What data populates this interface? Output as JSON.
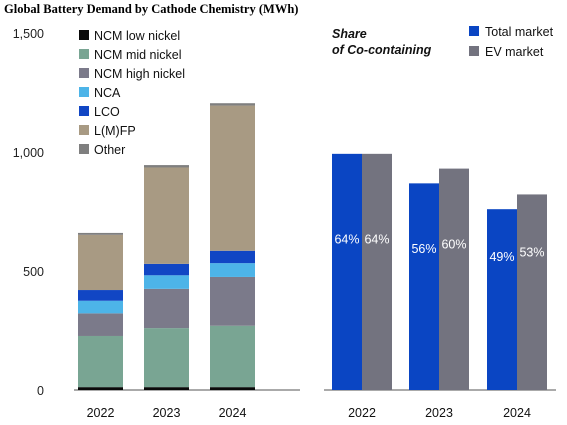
{
  "title": "Global Battery Demand by Cathode Chemistry (MWh)",
  "chart_data": [
    {
      "type": "bar",
      "stacked": true,
      "categories": [
        "2022",
        "2023",
        "2024"
      ],
      "yticks": [
        "1,500",
        "1,000",
        "500",
        "0"
      ],
      "ylim": [
        0,
        1500
      ],
      "legend_position": "top-left",
      "series": [
        {
          "name": "NCM low nickel",
          "color": "#0a0a0a",
          "values": [
            12,
            12,
            12
          ]
        },
        {
          "name": "NCM mid nickel",
          "color": "#79a593",
          "values": [
            215,
            248,
            258
          ]
        },
        {
          "name": "NCM high nickel",
          "color": "#7b7a8a",
          "values": [
            95,
            165,
            205
          ]
        },
        {
          "name": "NCA",
          "color": "#4db4e8",
          "values": [
            53,
            57,
            58
          ]
        },
        {
          "name": "LCO",
          "color": "#1146c4",
          "values": [
            45,
            48,
            52
          ]
        },
        {
          "name": "L(M)FP",
          "color": "#a89a83",
          "values": [
            232,
            405,
            610
          ]
        },
        {
          "name": "Other",
          "color": "#7f7f7f",
          "values": [
            8,
            10,
            10
          ]
        }
      ]
    },
    {
      "type": "bar",
      "subtitle": "Share\nof Co-containing",
      "categories": [
        "2022",
        "2023",
        "2024"
      ],
      "ylim": [
        0,
        1
      ],
      "legend_position": "top-right",
      "series": [
        {
          "name": "Total market",
          "color": "#0a45c3",
          "values": [
            0.64,
            0.56,
            0.49
          ],
          "labels": [
            "64%",
            "56%",
            "49%"
          ]
        },
        {
          "name": "EV market",
          "color": "#73737f",
          "values": [
            0.64,
            0.6,
            0.53
          ],
          "labels": [
            "64%",
            "60%",
            "53%"
          ]
        }
      ]
    }
  ]
}
